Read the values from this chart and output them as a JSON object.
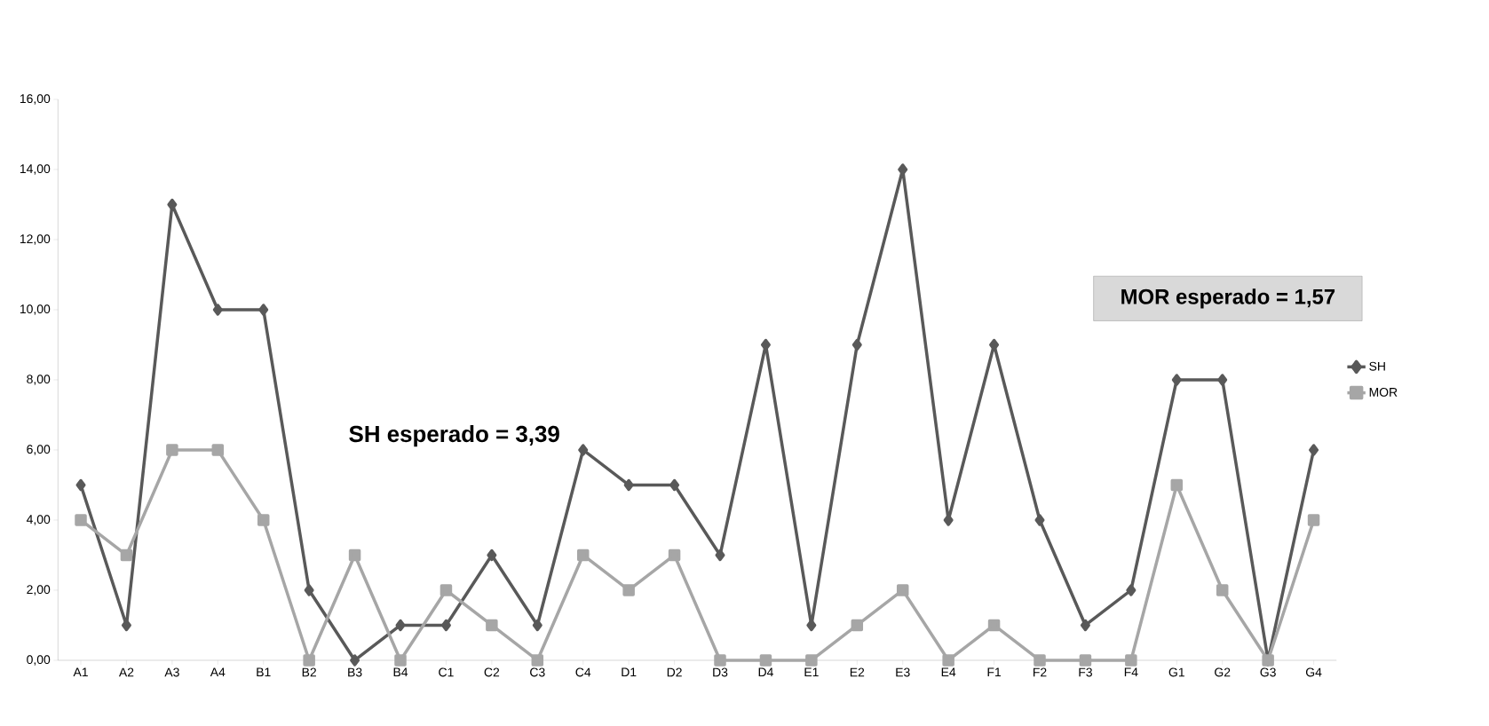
{
  "chart_data": {
    "type": "line",
    "categories": [
      "A1",
      "A2",
      "A3",
      "A4",
      "B1",
      "B2",
      "B3",
      "B4",
      "C1",
      "C2",
      "C3",
      "C4",
      "D1",
      "D2",
      "D3",
      "D4",
      "E1",
      "E2",
      "E3",
      "E4",
      "F1",
      "F2",
      "F3",
      "F4",
      "G1",
      "G2",
      "G3",
      "G4"
    ],
    "series": [
      {
        "name": "SH",
        "color": "#595959",
        "marker": "diamond",
        "values": [
          5,
          1,
          13,
          10,
          10,
          2,
          0,
          1,
          1,
          3,
          1,
          6,
          5,
          5,
          3,
          9,
          1,
          9,
          14,
          4,
          9,
          4,
          1,
          2,
          8,
          8,
          0,
          6
        ]
      },
      {
        "name": "MOR",
        "color": "#a6a6a6",
        "marker": "square",
        "values": [
          4,
          3,
          6,
          6,
          4,
          0,
          3,
          0,
          2,
          1,
          0,
          3,
          2,
          3,
          0,
          0,
          0,
          1,
          2,
          0,
          1,
          0,
          0,
          0,
          5,
          2,
          0,
          4
        ]
      }
    ],
    "ylim": [
      0,
      16
    ],
    "yticks": [
      {
        "value": 0,
        "label": "0,00"
      },
      {
        "value": 2,
        "label": "2,00"
      },
      {
        "value": 4,
        "label": "4,00"
      },
      {
        "value": 6,
        "label": "6,00"
      },
      {
        "value": 8,
        "label": "8,00"
      },
      {
        "value": 10,
        "label": "10,00"
      },
      {
        "value": 12,
        "label": "12,00"
      },
      {
        "value": 14,
        "label": "14,00"
      },
      {
        "value": 16,
        "label": "16,00"
      }
    ],
    "legend": "right",
    "annotations": [
      "SH esperado = 3,39",
      "MOR esperado = 1,57"
    ]
  }
}
